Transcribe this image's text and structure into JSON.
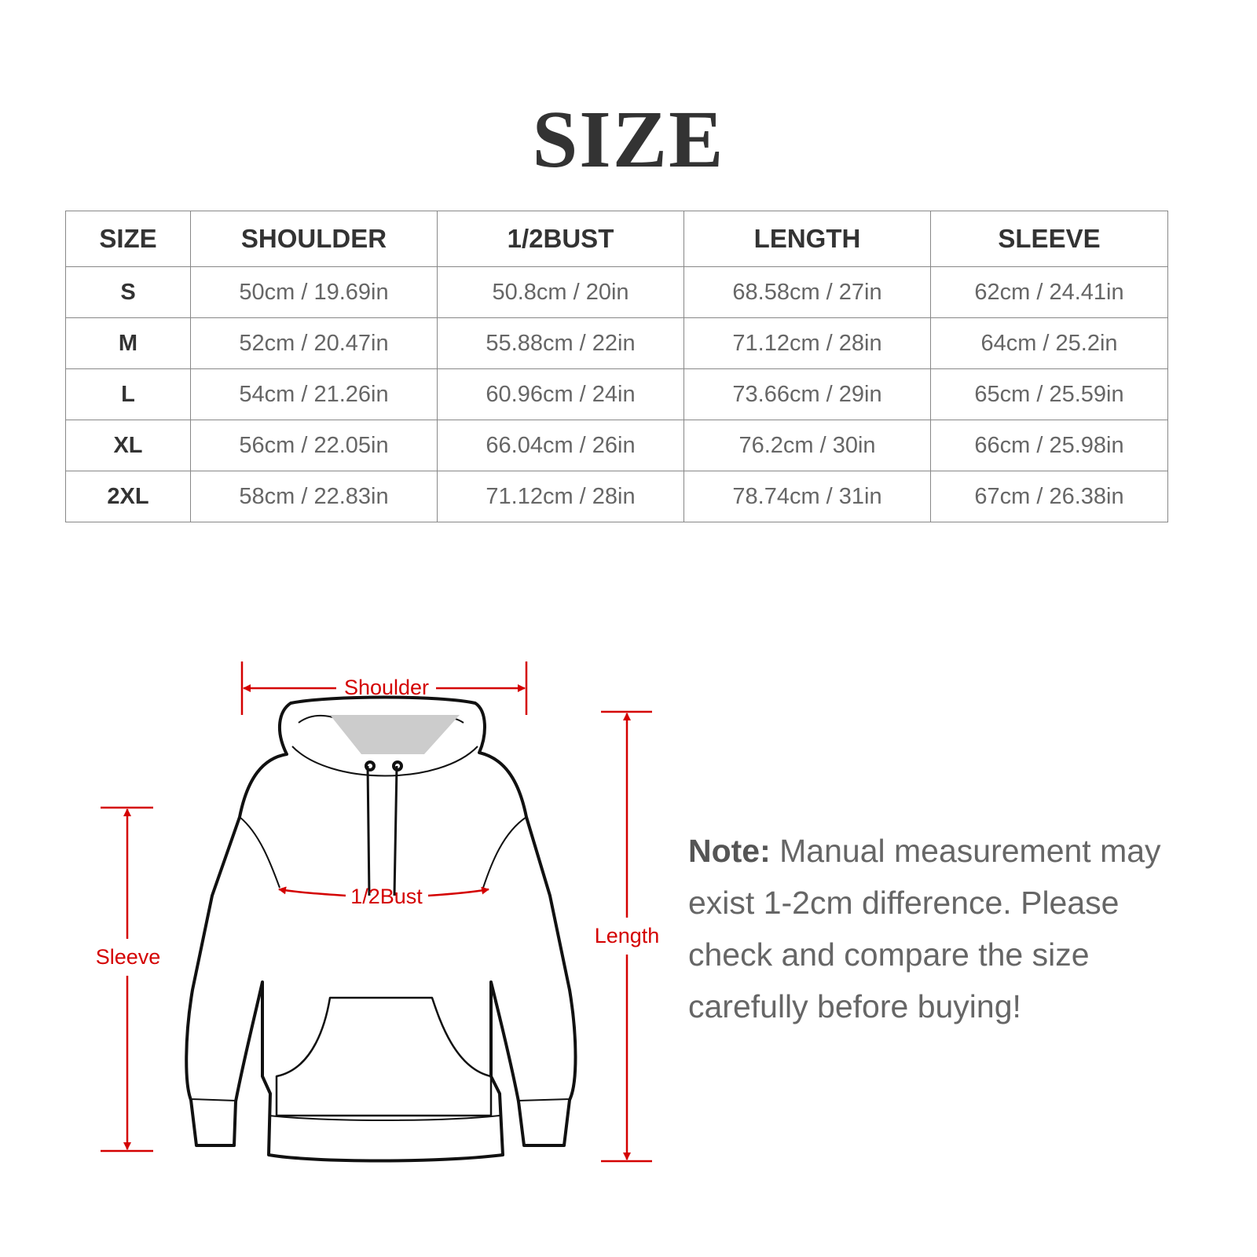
{
  "title": "SIZE",
  "table": {
    "headers": [
      "SIZE",
      "SHOULDER",
      "1/2BUST",
      "LENGTH",
      "SLEEVE"
    ],
    "rows": [
      [
        "S",
        "50cm / 19.69in",
        "50.8cm / 20in",
        "68.58cm / 27in",
        "62cm / 24.41in"
      ],
      [
        "M",
        "52cm / 20.47in",
        "55.88cm / 22in",
        "71.12cm / 28in",
        "64cm / 25.2in"
      ],
      [
        "L",
        "54cm / 21.26in",
        "60.96cm / 24in",
        "73.66cm / 29in",
        "65cm / 25.59in"
      ],
      [
        "XL",
        "56cm / 22.05in",
        "66.04cm / 26in",
        "76.2cm / 30in",
        "66cm / 25.98in"
      ],
      [
        "2XL",
        "58cm / 22.83in",
        "71.12cm / 28in",
        "78.74cm / 31in",
        "67cm / 26.38in"
      ]
    ]
  },
  "diagram": {
    "labels": {
      "shoulder": "Shoulder",
      "bust": "1/2Bust",
      "length": "Length",
      "sleeve": "Sleeve"
    },
    "accent_color": "#d40000"
  },
  "note": {
    "label": "Note:",
    "text": " Manual measurement may exist 1-2cm difference. Please check and compare the size carefully before buying!"
  }
}
